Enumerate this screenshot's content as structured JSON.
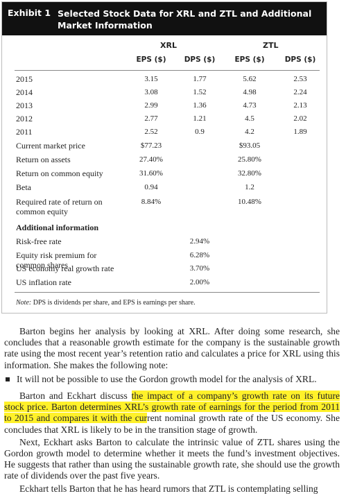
{
  "header": {
    "exhibit": "Exhibit 1",
    "title": "Selected Stock Data for XRL and ZTL and Additional Market Information"
  },
  "table": {
    "groups": [
      "XRL",
      "ZTL"
    ],
    "columns": [
      "EPS ($)",
      "DPS ($)",
      "EPS ($)",
      "DPS ($)"
    ],
    "rows": [
      {
        "label": "2015",
        "cells": [
          "3.15",
          "1.77",
          "5.62",
          "2.53"
        ]
      },
      {
        "label": "2014",
        "cells": [
          "3.08",
          "1.52",
          "4.98",
          "2.24"
        ]
      },
      {
        "label": "2013",
        "cells": [
          "2.99",
          "1.36",
          "4.73",
          "2.13"
        ]
      },
      {
        "label": "2012",
        "cells": [
          "2.77",
          "1.21",
          "4.5",
          "2.02"
        ]
      },
      {
        "label": "2011",
        "cells": [
          "2.52",
          "0.9",
          "4.2",
          "1.89"
        ]
      },
      {
        "label": "Current market price",
        "cells": [
          "$77.23",
          null,
          "$93.05",
          null
        ]
      },
      {
        "label": "Return on assets",
        "cells": [
          "27.40%",
          null,
          "25.80%",
          null
        ]
      },
      {
        "label": "Return on common equity",
        "cells": [
          "31.60%",
          null,
          "32.80%",
          null
        ]
      },
      {
        "label": "Beta",
        "cells": [
          "0.94",
          null,
          "1.2",
          null
        ]
      },
      {
        "label": "Required rate of return on common equity",
        "cells": [
          "8.84%",
          null,
          "10.48%",
          null
        ]
      }
    ],
    "section_title": "Additional information",
    "extra_rows": [
      {
        "label": "Risk-free rate",
        "cells": [
          null,
          "2.94%",
          null,
          null
        ]
      },
      {
        "label": "Equity risk premium for common shares",
        "cells": [
          null,
          "6.28%",
          null,
          null
        ]
      },
      {
        "label": "US economy real growth rate",
        "cells": [
          null,
          "3.70%",
          null,
          null
        ]
      },
      {
        "label": "US inflation rate",
        "cells": [
          null,
          "2.00%",
          null,
          null
        ]
      }
    ],
    "note_label": "Note:",
    "note_text": "DPS is dividends per share, and EPS is earnings per share."
  },
  "body": [
    {
      "type": "paragraph",
      "parts": [
        {
          "text": "Barton begins her analysis by looking at XRL. After doing some research, she concludes that a reasonable growth estimate for the company is the sustainable growth rate using the most recent year’s retention ratio and calculates a price for XRL using this information. She makes the following note:",
          "highlight": false
        }
      ]
    },
    {
      "type": "bullet",
      "parts": [
        {
          "text": "It will not be possible to use the Gordon growth model for the analysis of XRL.",
          "highlight": false
        }
      ]
    },
    {
      "type": "paragraph",
      "parts": [
        {
          "text": "Barton and Eckhart discuss ",
          "highlight": false
        },
        {
          "text": "the impact of a company’s growth rate on its future stock price. Barton determines XRL’s growth rate of earnings for the period from 2011 to 2015 and compares it with the cur",
          "highlight": true
        },
        {
          "text": "rent nominal growth rate of the US economy. She concludes that XRL is likely to be in the transition stage of growth.",
          "highlight": false
        }
      ]
    },
    {
      "type": "paragraph",
      "parts": [
        {
          "text": "Next, Eckhart asks Barton to calculate the intrinsic value of ZTL shares using the Gordon growth model to determine whether it meets the fund’s investment objectives. He suggests that rather than using the sustainable growth rate, she should use the growth rate of dividends over the past five years.",
          "highlight": false
        }
      ]
    },
    {
      "type": "paragraph",
      "parts": [
        {
          "text": "Eckhart tells Barton that he has heard rumors that ZTL is contemplating selling",
          "highlight": false
        }
      ]
    }
  ]
}
